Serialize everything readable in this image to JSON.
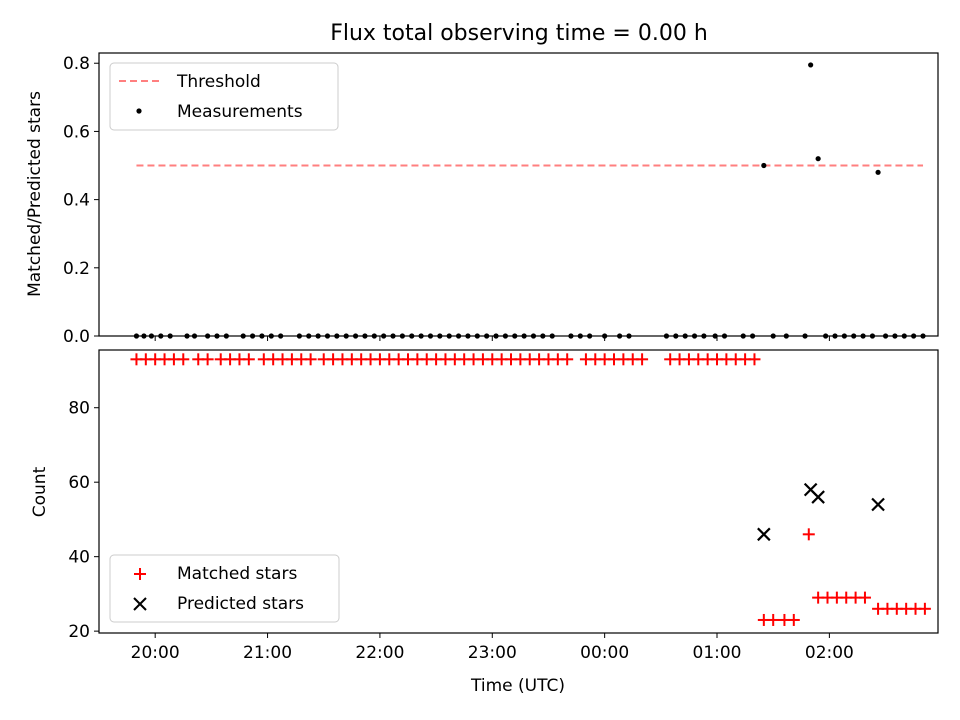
{
  "figure": {
    "title": "Flux total observing time = 0.00 h",
    "shared_xlabel": "Time (UTC)"
  },
  "chart_data": [
    {
      "type": "scatter",
      "panel": "top",
      "ylabel": "Matched/Predicted stars",
      "ylim": [
        0.0,
        0.83
      ],
      "yticks": [
        0.0,
        0.2,
        0.4,
        0.6,
        0.8
      ],
      "ytick_labels": [
        "0.0",
        "0.2",
        "0.4",
        "0.6",
        "0.8"
      ],
      "xlim": [
        "19:30",
        "02:58"
      ],
      "xticks": [
        "20:00",
        "21:00",
        "22:00",
        "23:00",
        "00:00",
        "01:00",
        "02:00"
      ],
      "legend": {
        "placement": "upper-left",
        "entries": [
          "Threshold",
          "Measurements"
        ]
      },
      "threshold": {
        "name": "Threshold",
        "value": 0.5,
        "x_range": [
          "19:50",
          "02:50"
        ],
        "color": "#ff7f7f",
        "style": "dashed"
      },
      "series": [
        {
          "name": "Measurements",
          "marker": "dot",
          "color": "#000000",
          "points": [
            [
              "19:50",
              0.0
            ],
            [
              "19:54",
              0.0
            ],
            [
              "19:58",
              0.0
            ],
            [
              "20:03",
              0.0
            ],
            [
              "20:08",
              0.0
            ],
            [
              "20:17",
              0.0
            ],
            [
              "20:21",
              0.0
            ],
            [
              "20:28",
              0.0
            ],
            [
              "20:33",
              0.0
            ],
            [
              "20:38",
              0.0
            ],
            [
              "20:47",
              0.0
            ],
            [
              "20:52",
              0.0
            ],
            [
              "20:57",
              0.0
            ],
            [
              "21:02",
              0.0
            ],
            [
              "21:07",
              0.0
            ],
            [
              "21:17",
              0.0
            ],
            [
              "21:22",
              0.0
            ],
            [
              "21:27",
              0.0
            ],
            [
              "21:32",
              0.0
            ],
            [
              "21:37",
              0.0
            ],
            [
              "21:42",
              0.0
            ],
            [
              "21:47",
              0.0
            ],
            [
              "21:52",
              0.0
            ],
            [
              "21:57",
              0.0
            ],
            [
              "22:02",
              0.0
            ],
            [
              "22:07",
              0.0
            ],
            [
              "22:12",
              0.0
            ],
            [
              "22:17",
              0.0
            ],
            [
              "22:22",
              0.0
            ],
            [
              "22:27",
              0.0
            ],
            [
              "22:32",
              0.0
            ],
            [
              "22:37",
              0.0
            ],
            [
              "22:42",
              0.0
            ],
            [
              "22:47",
              0.0
            ],
            [
              "22:52",
              0.0
            ],
            [
              "22:57",
              0.0
            ],
            [
              "23:02",
              0.0
            ],
            [
              "23:07",
              0.0
            ],
            [
              "23:12",
              0.0
            ],
            [
              "23:17",
              0.0
            ],
            [
              "23:22",
              0.0
            ],
            [
              "23:27",
              0.0
            ],
            [
              "23:32",
              0.0
            ],
            [
              "23:42",
              0.0
            ],
            [
              "23:47",
              0.0
            ],
            [
              "23:52",
              0.0
            ],
            [
              "00:00",
              0.0
            ],
            [
              "00:08",
              0.0
            ],
            [
              "00:13",
              0.0
            ],
            [
              "00:33",
              0.0
            ],
            [
              "00:38",
              0.0
            ],
            [
              "00:43",
              0.0
            ],
            [
              "00:48",
              0.0
            ],
            [
              "00:53",
              0.0
            ],
            [
              "00:59",
              0.0
            ],
            [
              "01:04",
              0.0
            ],
            [
              "01:14",
              0.0
            ],
            [
              "01:19",
              0.0
            ],
            [
              "01:25",
              0.5
            ],
            [
              "01:30",
              0.0
            ],
            [
              "01:37",
              0.0
            ],
            [
              "01:47",
              0.0
            ],
            [
              "01:50",
              0.795
            ],
            [
              "01:54",
              0.52
            ],
            [
              "01:58",
              0.0
            ],
            [
              "02:03",
              0.0
            ],
            [
              "02:08",
              0.0
            ],
            [
              "02:13",
              0.0
            ],
            [
              "02:18",
              0.0
            ],
            [
              "02:23",
              0.0
            ],
            [
              "02:26",
              0.48
            ],
            [
              "02:30",
              0.0
            ],
            [
              "02:35",
              0.0
            ],
            [
              "02:40",
              0.0
            ],
            [
              "02:45",
              0.0
            ],
            [
              "02:50",
              0.0
            ]
          ]
        }
      ]
    },
    {
      "type": "scatter",
      "panel": "bottom",
      "xlabel": "Time (UTC)",
      "ylabel": "Count",
      "ylim": [
        19.5,
        95.5
      ],
      "yticks": [
        20,
        40,
        60,
        80
      ],
      "ytick_labels": [
        "20",
        "40",
        "60",
        "80"
      ],
      "xlim": [
        "19:30",
        "02:58"
      ],
      "xticks": [
        "20:00",
        "21:00",
        "22:00",
        "23:00",
        "00:00",
        "01:00",
        "02:00"
      ],
      "xtick_labels": [
        "20:00",
        "21:00",
        "22:00",
        "23:00",
        "00:00",
        "01:00",
        "02:00"
      ],
      "legend": {
        "placement": "lower-left",
        "entries": [
          "Matched stars",
          "Predicted stars"
        ]
      },
      "series": [
        {
          "name": "Matched stars",
          "marker": "plus",
          "color": "#ff0000",
          "points": [
            [
              "19:50",
              93
            ],
            [
              "19:55",
              93
            ],
            [
              "20:00",
              93
            ],
            [
              "20:05",
              93
            ],
            [
              "20:10",
              93
            ],
            [
              "20:15",
              93
            ],
            [
              "20:23",
              93
            ],
            [
              "20:28",
              93
            ],
            [
              "20:35",
              93
            ],
            [
              "20:40",
              93
            ],
            [
              "20:45",
              93
            ],
            [
              "20:50",
              93
            ],
            [
              "20:58",
              93
            ],
            [
              "21:03",
              93
            ],
            [
              "21:08",
              93
            ],
            [
              "21:13",
              93
            ],
            [
              "21:18",
              93
            ],
            [
              "21:23",
              93
            ],
            [
              "21:30",
              93
            ],
            [
              "21:35",
              93
            ],
            [
              "21:40",
              93
            ],
            [
              "21:45",
              93
            ],
            [
              "21:50",
              93
            ],
            [
              "21:55",
              93
            ],
            [
              "22:00",
              93
            ],
            [
              "22:05",
              93
            ],
            [
              "22:10",
              93
            ],
            [
              "22:15",
              93
            ],
            [
              "22:20",
              93
            ],
            [
              "22:25",
              93
            ],
            [
              "22:30",
              93
            ],
            [
              "22:35",
              93
            ],
            [
              "22:40",
              93
            ],
            [
              "22:45",
              93
            ],
            [
              "22:50",
              93
            ],
            [
              "22:55",
              93
            ],
            [
              "23:00",
              93
            ],
            [
              "23:05",
              93
            ],
            [
              "23:10",
              93
            ],
            [
              "23:15",
              93
            ],
            [
              "23:20",
              93
            ],
            [
              "23:25",
              93
            ],
            [
              "23:30",
              93
            ],
            [
              "23:35",
              93
            ],
            [
              "23:40",
              93
            ],
            [
              "23:50",
              93
            ],
            [
              "23:55",
              93
            ],
            [
              "00:00",
              93
            ],
            [
              "00:05",
              93
            ],
            [
              "00:10",
              93
            ],
            [
              "00:15",
              93
            ],
            [
              "00:20",
              93
            ],
            [
              "00:35",
              93
            ],
            [
              "00:40",
              93
            ],
            [
              "00:45",
              93
            ],
            [
              "00:50",
              93
            ],
            [
              "00:55",
              93
            ],
            [
              "01:00",
              93
            ],
            [
              "01:05",
              93
            ],
            [
              "01:10",
              93
            ],
            [
              "01:15",
              93
            ],
            [
              "01:20",
              93
            ],
            [
              "01:25",
              23
            ],
            [
              "01:30",
              23
            ],
            [
              "01:36",
              23
            ],
            [
              "01:41",
              23
            ],
            [
              "01:49",
              46
            ],
            [
              "01:54",
              29
            ],
            [
              "01:59",
              29
            ],
            [
              "02:04",
              29
            ],
            [
              "02:09",
              29
            ],
            [
              "02:14",
              29
            ],
            [
              "02:19",
              29
            ],
            [
              "02:26",
              26
            ],
            [
              "02:31",
              26
            ],
            [
              "02:36",
              26
            ],
            [
              "02:41",
              26
            ],
            [
              "02:46",
              26
            ],
            [
              "02:51",
              26
            ]
          ]
        },
        {
          "name": "Predicted stars",
          "marker": "x",
          "color": "#000000",
          "points": [
            [
              "01:25",
              46
            ],
            [
              "01:50",
              58
            ],
            [
              "01:54",
              56
            ],
            [
              "02:26",
              54
            ]
          ]
        }
      ]
    }
  ]
}
